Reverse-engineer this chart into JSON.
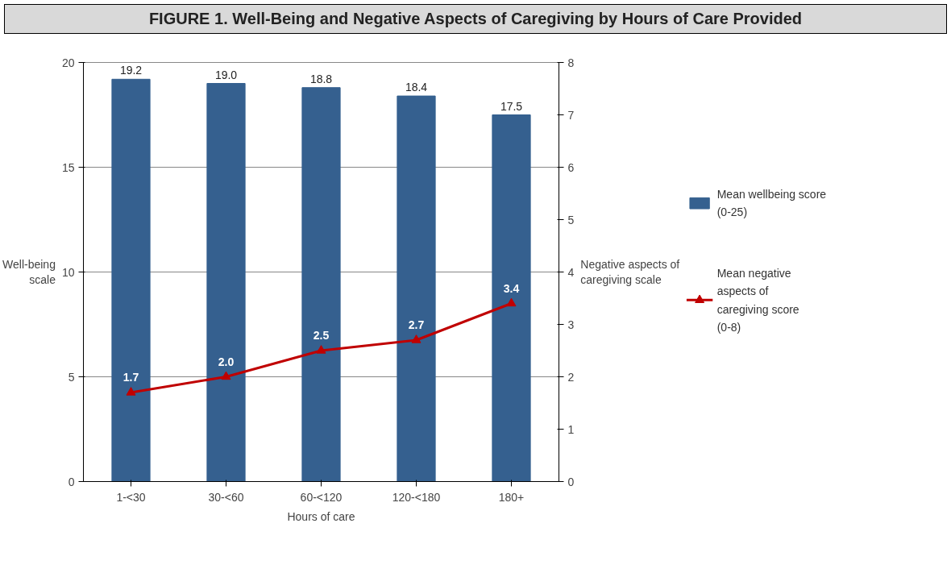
{
  "chart_data": {
    "type": "bar",
    "title": "FIGURE 1. Well-Being and Negative Aspects of Caregiving by Hours of Care Provided",
    "xlabel": "Hours of care",
    "ylabel": "Well-being scale",
    "y2label": "Negative aspects of caregiving scale",
    "categories": [
      "1-<30",
      "30-<60",
      "60-<120",
      "120-<180",
      "180+"
    ],
    "series": [
      {
        "name": "Mean wellbeing score (0-25)",
        "color": "#35608f",
        "values": [
          19.2,
          19.0,
          18.8,
          18.4,
          17.5
        ],
        "value_labels": [
          "19.2",
          "19.0",
          "18.8",
          "18.4",
          "17.5"
        ]
      },
      {
        "name": "Mean negative aspects of caregiving score (0-8)",
        "type": "line",
        "axis": "y2",
        "color": "#c00000",
        "marker": "triangle",
        "values": [
          1.7,
          2.0,
          2.5,
          2.7,
          3.4
        ],
        "value_labels": [
          "1.7",
          "2.0",
          "2.5",
          "2.7",
          "3.4"
        ]
      }
    ],
    "ylim": [
      0,
      20
    ],
    "yticks": [
      0,
      5,
      10,
      15,
      20
    ],
    "y2lim": [
      0,
      8
    ],
    "y2ticks": [
      0,
      1,
      2,
      3,
      4,
      5,
      6,
      7,
      8
    ],
    "grid": "y",
    "legend": "right"
  }
}
